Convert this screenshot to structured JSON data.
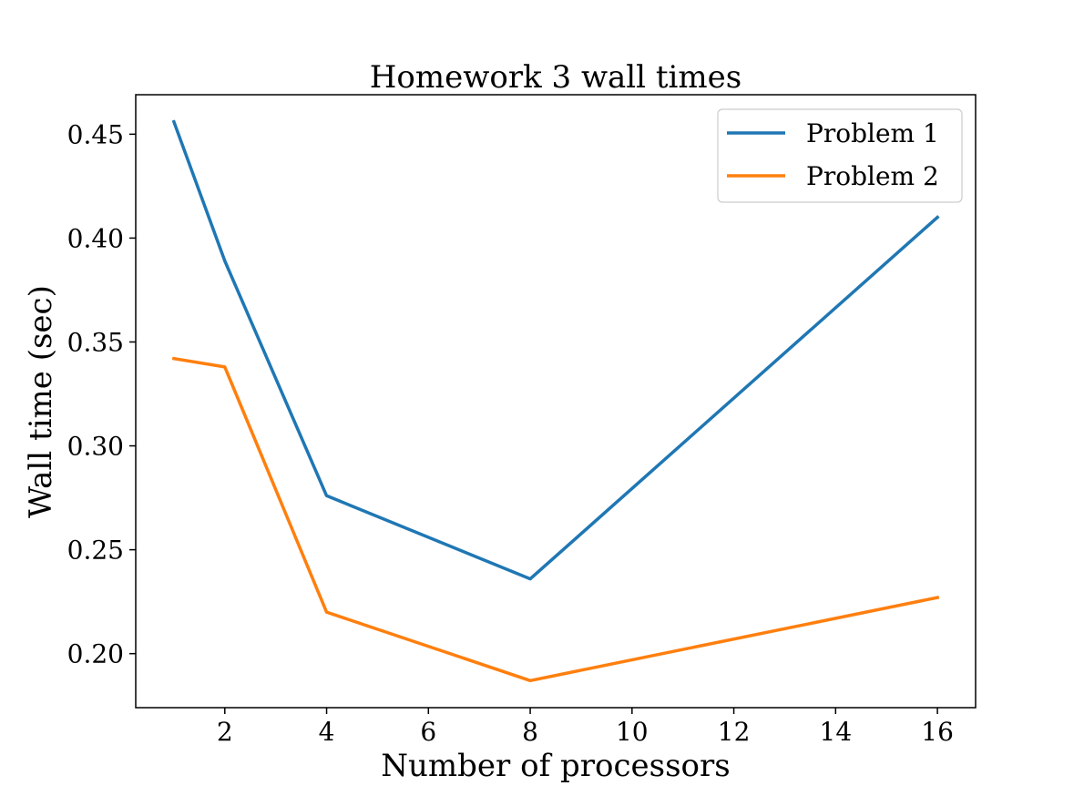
{
  "chart_data": {
    "type": "line",
    "title": "Homework 3 wall times",
    "xlabel": "Number of processors",
    "ylabel": "Wall time (sec)",
    "x": [
      1,
      2,
      4,
      8,
      16
    ],
    "series": [
      {
        "name": "Problem 1",
        "color": "#1f77b4",
        "values": [
          0.456,
          0.389,
          0.276,
          0.236,
          0.41
        ]
      },
      {
        "name": "Problem 2",
        "color": "#ff7f0e",
        "values": [
          0.342,
          0.338,
          0.22,
          0.187,
          0.227
        ]
      }
    ],
    "xlim": [
      0.25,
      16.75
    ],
    "ylim": [
      0.174,
      0.469
    ],
    "xticks": [
      2,
      4,
      6,
      8,
      10,
      12,
      14,
      16
    ],
    "xtick_labels": [
      "2",
      "4",
      "6",
      "8",
      "10",
      "12",
      "14",
      "16"
    ],
    "yticks": [
      0.2,
      0.25,
      0.3,
      0.35,
      0.4,
      0.45
    ],
    "ytick_labels": [
      "0.20",
      "0.25",
      "0.30",
      "0.35",
      "0.40",
      "0.45"
    ],
    "grid": false,
    "legend_position": "top-right"
  }
}
